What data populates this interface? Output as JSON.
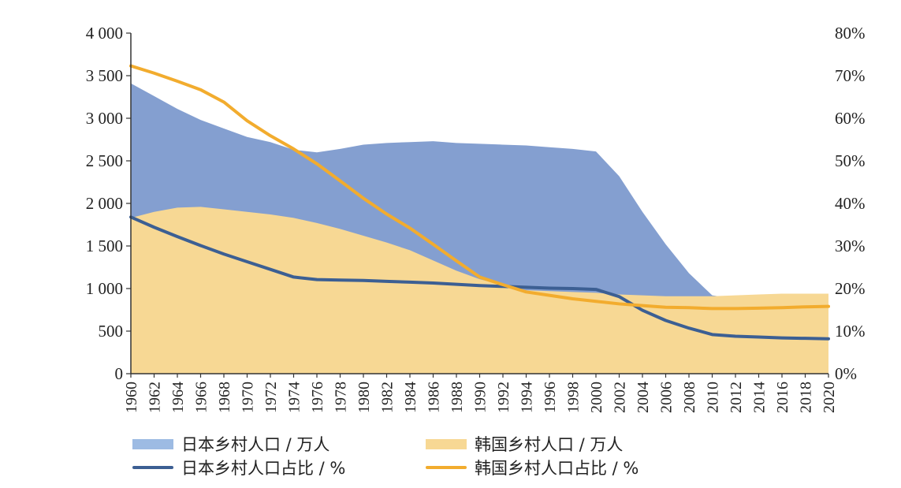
{
  "chart_data": {
    "type": "area",
    "title": "",
    "x": [
      1960,
      1962,
      1964,
      1966,
      1968,
      1970,
      1972,
      1974,
      1976,
      1978,
      1980,
      1982,
      1984,
      1986,
      1988,
      1990,
      1992,
      1994,
      1996,
      1998,
      2000,
      2002,
      2004,
      2006,
      2008,
      2010,
      2012,
      2014,
      2016,
      2018,
      2020
    ],
    "y_left": {
      "ylim": [
        0,
        4000
      ],
      "ticks": [
        "0",
        "500",
        "1 000",
        "1 500",
        "2 000",
        "2 500",
        "3 000",
        "3 500",
        "4 000"
      ],
      "tick_values": [
        0,
        500,
        1000,
        1500,
        2000,
        2500,
        3000,
        3500,
        4000
      ]
    },
    "y_right": {
      "ylim": [
        0,
        80
      ],
      "ticks": [
        "0%",
        "10%",
        "20%",
        "30%",
        "40%",
        "50%",
        "60%",
        "70%",
        "80%"
      ],
      "tick_values": [
        0,
        10,
        20,
        30,
        40,
        50,
        60,
        70,
        80
      ]
    },
    "x_ticks": [
      "1960",
      "1962",
      "1964",
      "1966",
      "1968",
      "1970",
      "1972",
      "1974",
      "1976",
      "1978",
      "1980",
      "1982",
      "1984",
      "1986",
      "1988",
      "1990",
      "1992",
      "1994",
      "1996",
      "1998",
      "2000",
      "2002",
      "2004",
      "2006",
      "2008",
      "2010",
      "2012",
      "2014",
      "2016",
      "2018",
      "2020"
    ],
    "series": [
      {
        "name": "日本乡村人口 / 万人",
        "kind": "area",
        "axis": "left",
        "color": "#849fd0",
        "values": [
          3410,
          3260,
          3110,
          2980,
          2880,
          2780,
          2720,
          2630,
          2600,
          2640,
          2690,
          2710,
          2720,
          2730,
          2710,
          2700,
          2690,
          2680,
          2660,
          2640,
          2610,
          2320,
          1900,
          1520,
          1180,
          920,
          880,
          850,
          830,
          800,
          760
        ]
      },
      {
        "name": "韩国乡村人口 / 万人",
        "kind": "area",
        "axis": "left",
        "color": "#f7d894",
        "values": [
          1830,
          1900,
          1950,
          1960,
          1930,
          1900,
          1870,
          1830,
          1770,
          1700,
          1620,
          1540,
          1450,
          1330,
          1210,
          1110,
          1040,
          980,
          970,
          960,
          950,
          930,
          920,
          910,
          910,
          910,
          920,
          930,
          940,
          940,
          940
        ]
      },
      {
        "name": "日本乡村人口占比 / %",
        "kind": "line",
        "axis": "right",
        "color": "#3c5f93",
        "values": [
          36.8,
          34.4,
          32.2,
          30.1,
          28.1,
          26.3,
          24.5,
          22.7,
          22.1,
          22.0,
          21.9,
          21.7,
          21.5,
          21.3,
          21.0,
          20.7,
          20.5,
          20.3,
          20.1,
          20.0,
          19.8,
          18.1,
          14.9,
          12.5,
          10.7,
          9.2,
          8.8,
          8.6,
          8.4,
          8.3,
          8.2
        ]
      },
      {
        "name": "韩国乡村人口占比 / %",
        "kind": "line",
        "axis": "right",
        "color": "#f2ac2e",
        "values": [
          72.3,
          70.6,
          68.7,
          66.7,
          63.8,
          59.4,
          55.9,
          52.8,
          49.3,
          45.3,
          41.2,
          37.5,
          34.2,
          30.4,
          26.5,
          22.7,
          20.9,
          19.2,
          18.4,
          17.6,
          17.0,
          16.4,
          16.0,
          15.6,
          15.5,
          15.3,
          15.3,
          15.4,
          15.5,
          15.7,
          15.8
        ]
      }
    ],
    "grid": false,
    "legend_position": "bottom"
  }
}
